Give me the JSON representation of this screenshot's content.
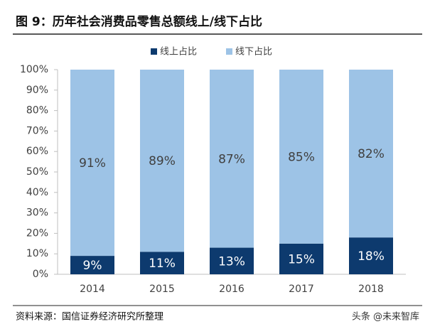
{
  "chart_data": {
    "type": "stacked-bar",
    "title": "图 9：历年社会消费品零售总额线上/线下占比",
    "categories": [
      "2014",
      "2015",
      "2016",
      "2017",
      "2018"
    ],
    "series": [
      {
        "name": "线上占比",
        "color": "#0d3a6e",
        "label_color": "#ffffff",
        "values": [
          9,
          11,
          13,
          15,
          18
        ],
        "value_labels": [
          "9%",
          "11%",
          "13%",
          "15%",
          "18%"
        ]
      },
      {
        "name": "线下占比",
        "color": "#9dc3e6",
        "label_color": "#404040",
        "values": [
          91,
          89,
          87,
          85,
          82
        ],
        "value_labels": [
          "91%",
          "89%",
          "87%",
          "85%",
          "82%"
        ]
      }
    ],
    "ylim": [
      0,
      100
    ],
    "yticks": [
      {
        "value": 0,
        "label": "0%"
      },
      {
        "value": 10,
        "label": "10%"
      },
      {
        "value": 20,
        "label": "20%"
      },
      {
        "value": 30,
        "label": "30%"
      },
      {
        "value": 40,
        "label": "40%"
      },
      {
        "value": 50,
        "label": "50%"
      },
      {
        "value": 60,
        "label": "60%"
      },
      {
        "value": 70,
        "label": "70%"
      },
      {
        "value": 80,
        "label": "80%"
      },
      {
        "value": 90,
        "label": "90%"
      },
      {
        "value": 100,
        "label": "100%"
      }
    ],
    "source": "资料来源：国信证券经济研究所整理",
    "watermark": "头条 @未来智库"
  }
}
